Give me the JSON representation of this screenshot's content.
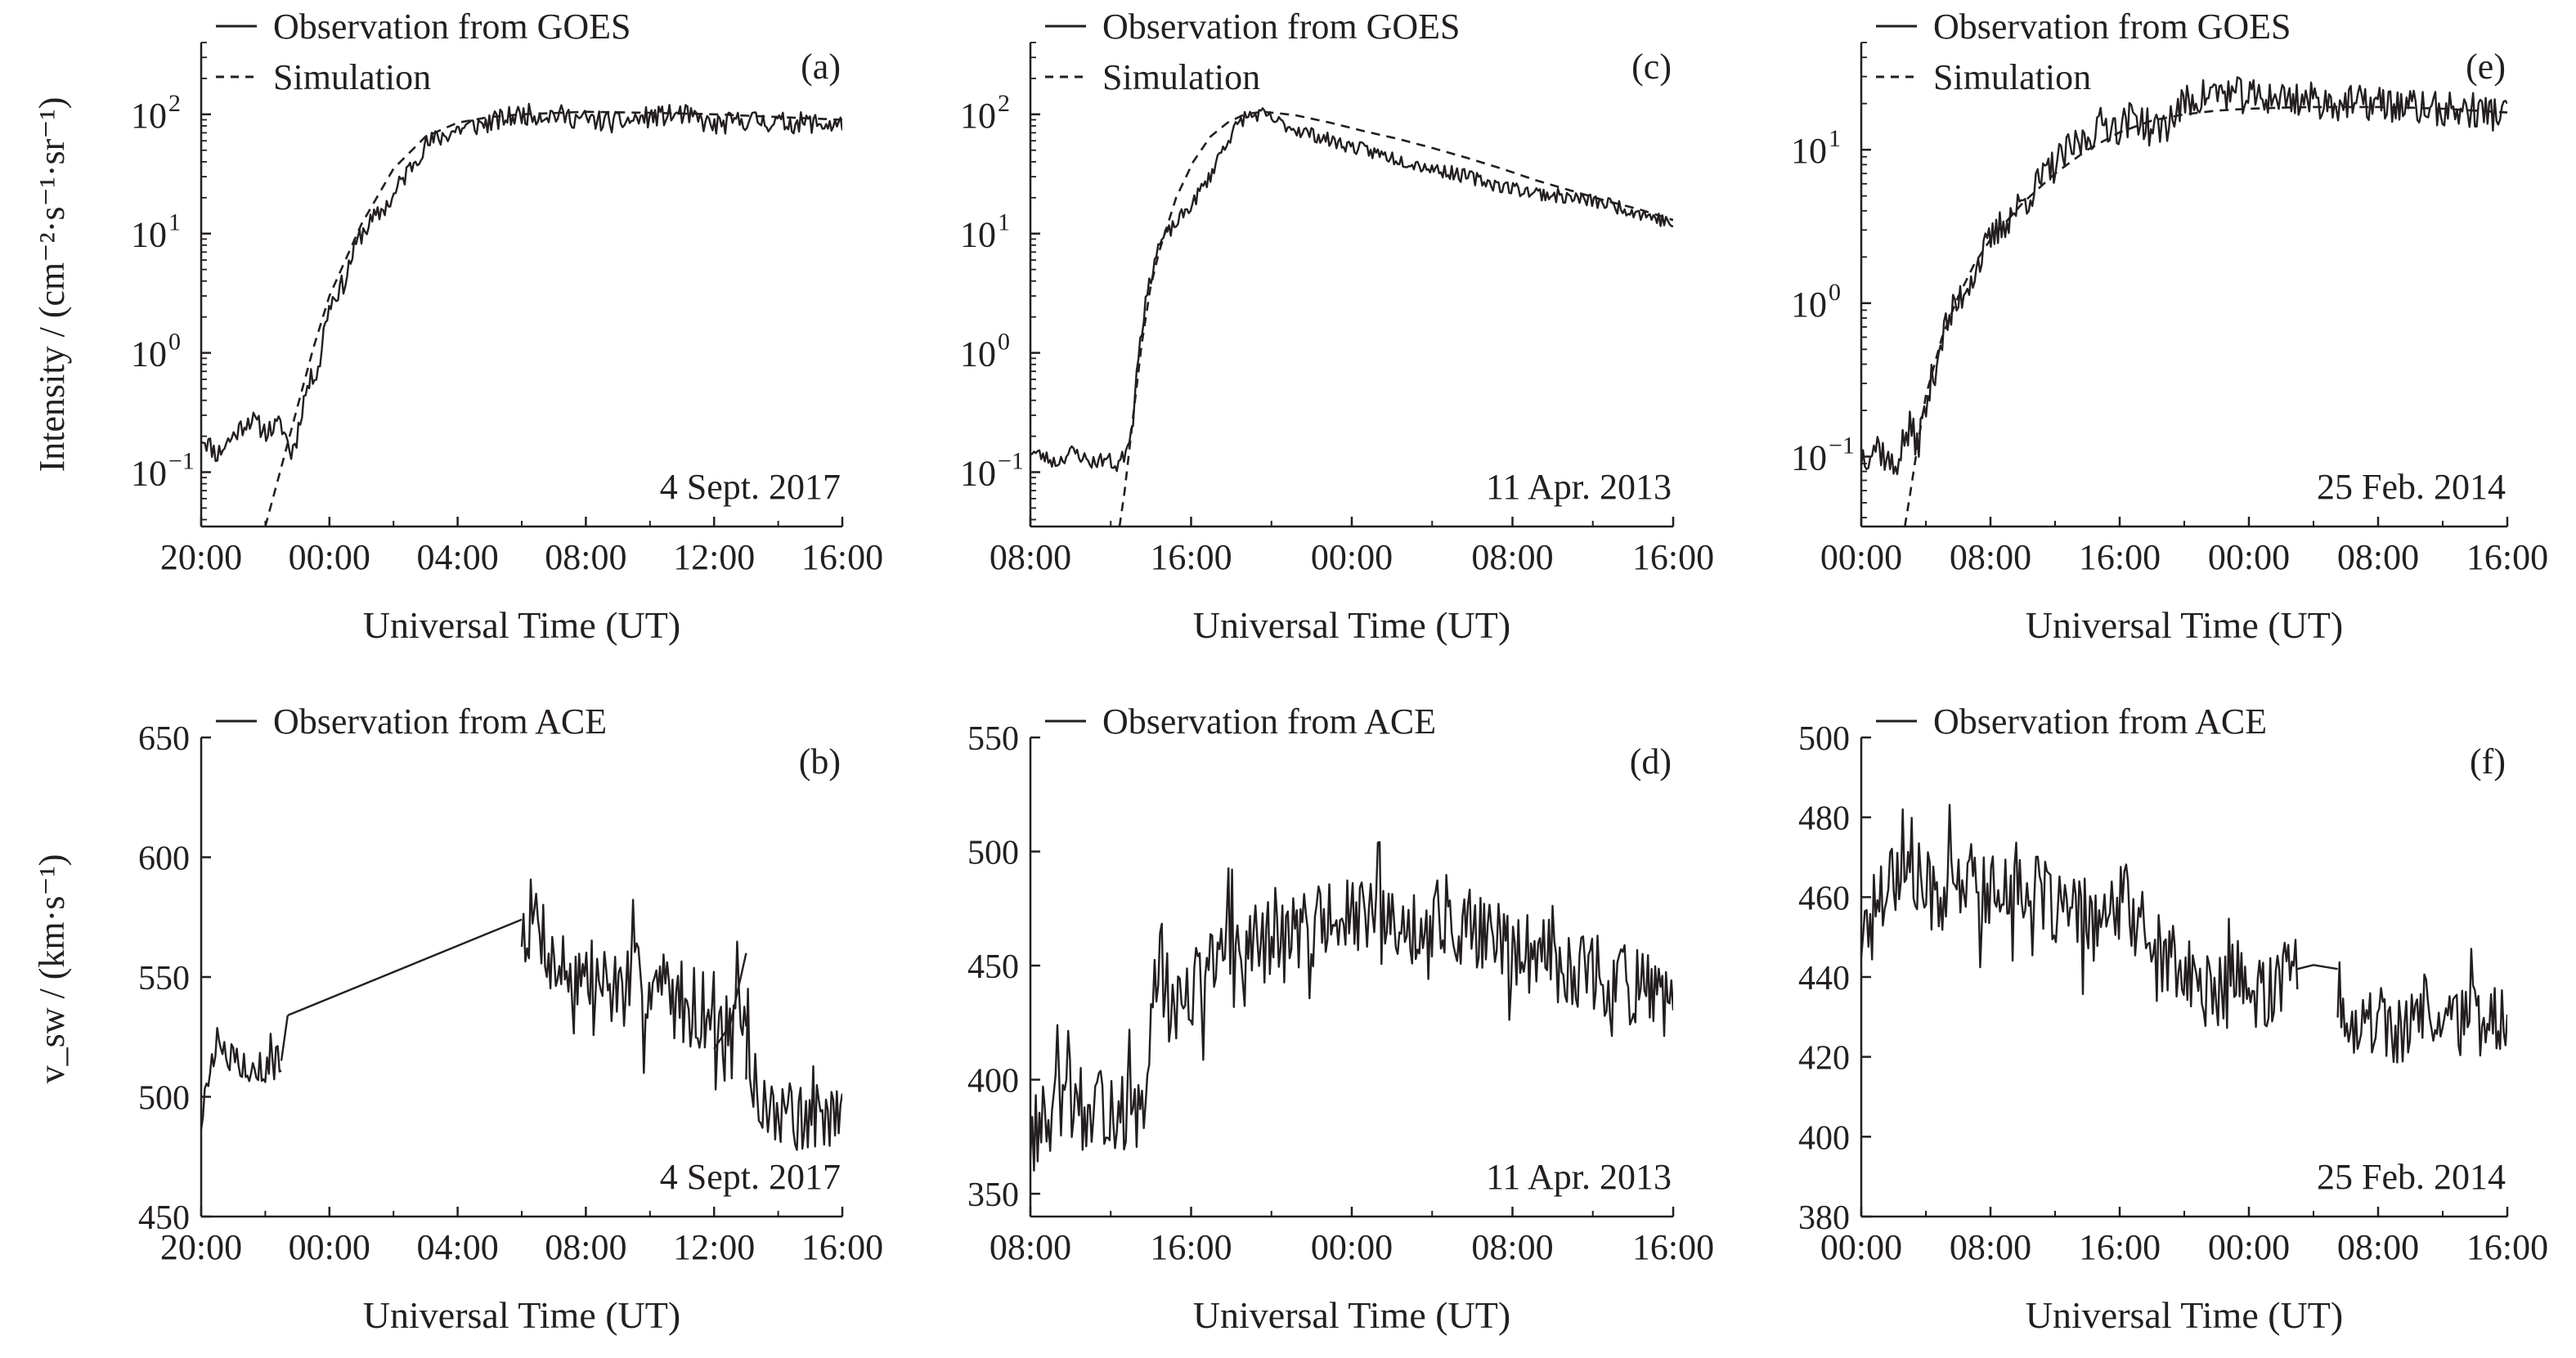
{
  "figure": {
    "ylabel_top": "Intensity / (cm⁻²·s⁻¹·sr⁻¹)",
    "ylabel_bottom": "v_sw / (km·s⁻¹)"
  },
  "chart_data": [
    {
      "id": "a",
      "type": "line",
      "panel_label": "(a)",
      "event": "4 Sept. 2017",
      "xlabel": "Universal Time (UT)",
      "yscale": "log",
      "ylim": [
        0.035,
        400
      ],
      "x_ticks": [
        "20:00",
        "00:00",
        "04:00",
        "08:00",
        "12:00",
        "16:00"
      ],
      "xlim_hours": [
        0,
        20
      ],
      "y_ticks": [
        {
          "value": 100,
          "base": "10",
          "exp": "2"
        },
        {
          "value": 10,
          "base": "10",
          "exp": "1"
        },
        {
          "value": 1,
          "base": "10",
          "exp": "0"
        },
        {
          "value": 0.1,
          "base": "10",
          "exp": "−1"
        }
      ],
      "legend": [
        "Observation from GOES",
        "Simulation"
      ],
      "series": [
        {
          "name": "Observation from GOES",
          "style": "solid",
          "x": [
            0,
            0.5,
            1,
            1.5,
            2,
            2.5,
            2.8,
            3,
            3.3,
            3.7,
            4,
            4.5,
            5,
            5.5,
            6,
            6.5,
            7,
            8,
            9,
            10,
            11,
            12,
            13,
            14,
            15,
            16,
            17,
            18,
            19,
            20
          ],
          "y": [
            0.2,
            0.14,
            0.2,
            0.28,
            0.22,
            0.25,
            0.14,
            0.2,
            0.5,
            0.8,
            2.5,
            4,
            10,
            14,
            20,
            35,
            55,
            75,
            85,
            100,
            100,
            90,
            85,
            95,
            100,
            80,
            90,
            85,
            85,
            80
          ],
          "noise": 0.09,
          "seed": 11
        },
        {
          "name": "Simulation",
          "style": "dashed",
          "x": [
            2.0,
            2.5,
            3,
            3.5,
            4,
            5,
            6,
            7,
            8,
            9,
            10,
            12,
            14,
            16,
            18,
            20
          ],
          "y": [
            0.035,
            0.11,
            0.35,
            1.1,
            3,
            12,
            35,
            65,
            85,
            95,
            100,
            105,
            103,
            100,
            95,
            90
          ]
        }
      ]
    },
    {
      "id": "c",
      "type": "line",
      "panel_label": "(c)",
      "event": "11 Apr. 2013",
      "xlabel": "Universal Time (UT)",
      "yscale": "log",
      "ylim": [
        0.035,
        400
      ],
      "x_ticks": [
        "08:00",
        "16:00",
        "00:00",
        "08:00",
        "16:00"
      ],
      "xlim_hours": [
        2.5,
        40
      ],
      "y_ticks": [
        {
          "value": 100,
          "base": "10",
          "exp": "2"
        },
        {
          "value": 10,
          "base": "10",
          "exp": "1"
        },
        {
          "value": 1,
          "base": "10",
          "exp": "0"
        },
        {
          "value": 0.1,
          "base": "10",
          "exp": "−1"
        }
      ],
      "legend": [
        "Observation from GOES",
        "Simulation"
      ],
      "series": [
        {
          "name": "Observation from GOES",
          "style": "solid",
          "x": [
            2.5,
            4,
            5,
            6,
            7,
            7.5,
            8,
            8.5,
            9,
            9.5,
            10,
            11,
            12,
            13,
            14,
            15,
            16,
            17,
            18,
            20,
            22,
            24,
            26,
            28,
            30,
            32,
            34,
            36,
            38,
            40
          ],
          "y": [
            0.15,
            0.12,
            0.15,
            0.12,
            0.13,
            0.11,
            0.14,
            0.25,
            1.5,
            4,
            8,
            12,
            18,
            30,
            60,
            95,
            100,
            85,
            75,
            60,
            50,
            42,
            35,
            30,
            25,
            22,
            20,
            18,
            15,
            12
          ],
          "noise": 0.06,
          "seed": 23
        },
        {
          "name": "Simulation",
          "style": "dashed",
          "x": [
            7.7,
            8,
            8.5,
            9,
            9.5,
            10,
            11,
            12,
            13,
            14,
            15,
            16,
            17,
            18,
            20,
            22,
            24,
            26,
            28,
            30,
            32,
            34,
            36,
            38,
            40
          ],
          "y": [
            0.035,
            0.07,
            0.3,
            1.2,
            3.5,
            7,
            20,
            40,
            65,
            85,
            100,
            105,
            102,
            98,
            85,
            72,
            62,
            52,
            43,
            35,
            28,
            23,
            19,
            16,
            13
          ]
        }
      ]
    },
    {
      "id": "e",
      "type": "line",
      "panel_label": "(e)",
      "event": "25 Feb. 2014",
      "xlabel": "Universal Time (UT)",
      "yscale": "log",
      "ylim": [
        0.035,
        50
      ],
      "x_ticks": [
        "00:00",
        "08:00",
        "16:00",
        "00:00",
        "08:00",
        "16:00"
      ],
      "xlim_hours": [
        0,
        40
      ],
      "y_ticks": [
        {
          "value": 10,
          "base": "10",
          "exp": "1"
        },
        {
          "value": 1,
          "base": "10",
          "exp": "0"
        },
        {
          "value": 0.1,
          "base": "10",
          "exp": "−1"
        }
      ],
      "legend": [
        "Observation from GOES",
        "Simulation"
      ],
      "series": [
        {
          "name": "Observation from GOES",
          "style": "solid",
          "x": [
            0,
            1,
            2,
            3,
            3.5,
            4,
            4.5,
            5,
            6,
            7,
            8,
            9,
            10,
            11,
            12,
            13,
            14,
            15,
            16,
            17,
            18,
            19,
            20,
            21,
            22,
            24,
            26,
            28,
            30,
            32,
            34,
            36,
            38,
            40
          ],
          "y": [
            0.1,
            0.12,
            0.08,
            0.15,
            0.12,
            0.2,
            0.35,
            0.6,
            1,
            1.6,
            2.5,
            3.5,
            4.5,
            6,
            8,
            10,
            12,
            15,
            14,
            17,
            13,
            15,
            20,
            22,
            24,
            22,
            22,
            21,
            20,
            20,
            19,
            18,
            18,
            17
          ],
          "noise": 0.12,
          "seed": 37
        },
        {
          "name": "Simulation",
          "style": "dashed",
          "x": [
            2.7,
            3,
            3.5,
            4,
            5,
            6,
            7,
            8,
            10,
            12,
            14,
            16,
            18,
            20,
            22,
            24,
            26,
            28,
            30,
            32,
            34,
            36,
            38,
            40
          ],
          "y": [
            0.035,
            0.055,
            0.12,
            0.25,
            0.6,
            1.1,
            1.8,
            2.6,
            4.5,
            7,
            10,
            13,
            15.5,
            17,
            18,
            18.5,
            18.8,
            19,
            19,
            19,
            18.8,
            18.5,
            18,
            17.5
          ]
        }
      ]
    },
    {
      "id": "b",
      "type": "line",
      "panel_label": "(b)",
      "event": "4 Sept. 2017",
      "xlabel": "Universal Time (UT)",
      "yscale": "linear",
      "ylim": [
        450,
        650
      ],
      "x_ticks": [
        "20:00",
        "00:00",
        "04:00",
        "08:00",
        "12:00",
        "16:00"
      ],
      "xlim_hours": [
        0,
        20
      ],
      "y_ticks": [
        {
          "value": 650,
          "label": "650"
        },
        {
          "value": 600,
          "label": "600"
        },
        {
          "value": 550,
          "label": "550"
        },
        {
          "value": 500,
          "label": "500"
        },
        {
          "value": 450,
          "label": "450"
        }
      ],
      "legend": [
        "Observation from ACE"
      ],
      "series": [
        {
          "name": "Observation from ACE",
          "style": "solid",
          "segments": [
            {
              "x": [
                0,
                0.3,
                1,
                2,
                2.5
              ],
              "y": [
                490,
                518,
                515,
                512,
                515
              ],
              "noise": 7,
              "seed": 5
            },
            {
              "x": [
                2.5,
                2.7
              ],
              "y": [
                515,
                534
              ],
              "noise": 0,
              "seed": 1
            },
            {
              "x": [
                2.7,
                10
              ],
              "y": [
                534,
                574
              ],
              "noise": 0,
              "seed": 1
            },
            {
              "x": [
                10,
                10.5,
                11,
                12,
                13,
                14,
                15,
                16,
                16.5,
                17
              ],
              "y": [
                572,
                575,
                555,
                550,
                545,
                548,
                540,
                535,
                525,
                530
              ],
              "noise": 18,
              "seed": 7
            },
            {
              "x": [
                16,
                16.5,
                17
              ],
              "y": [
                520,
                530,
                560
              ],
              "noise": 0,
              "seed": 1
            },
            {
              "x": [
                17,
                17.5,
                18,
                18.5,
                19,
                19.5,
                20
              ],
              "y": [
                515,
                500,
                495,
                490,
                488,
                495,
                490
              ],
              "noise": 15,
              "seed": 9
            }
          ]
        }
      ]
    },
    {
      "id": "d",
      "type": "line",
      "panel_label": "(d)",
      "event": "11 Apr. 2013",
      "xlabel": "Universal Time (UT)",
      "yscale": "linear",
      "ylim": [
        340,
        550
      ],
      "x_ticks": [
        "08:00",
        "16:00",
        "00:00",
        "08:00",
        "16:00"
      ],
      "xlim_hours": [
        2.5,
        40
      ],
      "y_ticks": [
        {
          "value": 550,
          "label": "550"
        },
        {
          "value": 500,
          "label": "500"
        },
        {
          "value": 450,
          "label": "450"
        },
        {
          "value": 400,
          "label": "400"
        },
        {
          "value": 350,
          "label": "350"
        }
      ],
      "legend": [
        "Observation from ACE"
      ],
      "series": [
        {
          "name": "Observation from ACE",
          "style": "solid",
          "segments": [
            {
              "x": [
                2.5,
                4,
                5,
                6,
                7,
                8,
                9,
                9.5,
                10,
                11,
                12,
                13,
                14,
                16,
                18,
                20,
                22,
                24,
                26,
                28,
                30,
                32,
                34,
                36,
                38,
                39,
                40
              ],
              "y": [
                375,
                385,
                395,
                380,
                390,
                385,
                380,
                420,
                455,
                430,
                440,
                450,
                455,
                460,
                465,
                470,
                470,
                465,
                470,
                465,
                460,
                455,
                450,
                445,
                440,
                435,
                430
              ],
              "noise": 18,
              "seed": 13
            }
          ]
        }
      ]
    },
    {
      "id": "f",
      "type": "line",
      "panel_label": "(f)",
      "event": "25 Feb. 2014",
      "xlabel": "Universal Time (UT)",
      "yscale": "linear",
      "ylim": [
        380,
        500
      ],
      "x_ticks": [
        "00:00",
        "08:00",
        "16:00",
        "00:00",
        "08:00",
        "16:00"
      ],
      "xlim_hours": [
        0,
        40
      ],
      "y_ticks": [
        {
          "value": 500,
          "label": "500"
        },
        {
          "value": 480,
          "label": "480"
        },
        {
          "value": 460,
          "label": "460"
        },
        {
          "value": 440,
          "label": "440"
        },
        {
          "value": 420,
          "label": "420"
        },
        {
          "value": 400,
          "label": "400"
        },
        {
          "value": 380,
          "label": "380"
        }
      ],
      "legend": [
        "Observation from ACE"
      ],
      "series": [
        {
          "name": "Observation from ACE",
          "style": "solid",
          "segments": [
            {
              "x": [
                0,
                1,
                2,
                3,
                4,
                5,
                6,
                7,
                8,
                9,
                10,
                11,
                12,
                13,
                14,
                15,
                16,
                17,
                18,
                19,
                20,
                21,
                22,
                23,
                24,
                25,
                26,
                27
              ],
              "y": [
                450,
                460,
                468,
                466,
                462,
                460,
                463,
                465,
                460,
                465,
                463,
                460,
                458,
                455,
                455,
                452,
                458,
                455,
                448,
                445,
                440,
                438,
                435,
                438,
                435,
                437,
                440,
                442
              ],
              "noise": 10,
              "seed": 17
            },
            {
              "x": [
                27,
                28,
                29.5
              ],
              "y": [
                442,
                443,
                442
              ],
              "noise": 0,
              "seed": 1
            },
            {
              "x": [
                29.5,
                30,
                31,
                32,
                33,
                34,
                35,
                36,
                37,
                38,
                39,
                40
              ],
              "y": [
                440,
                430,
                428,
                430,
                425,
                430,
                432,
                430,
                428,
                430,
                430,
                428
              ],
              "noise": 9,
              "seed": 19
            }
          ]
        }
      ]
    }
  ]
}
